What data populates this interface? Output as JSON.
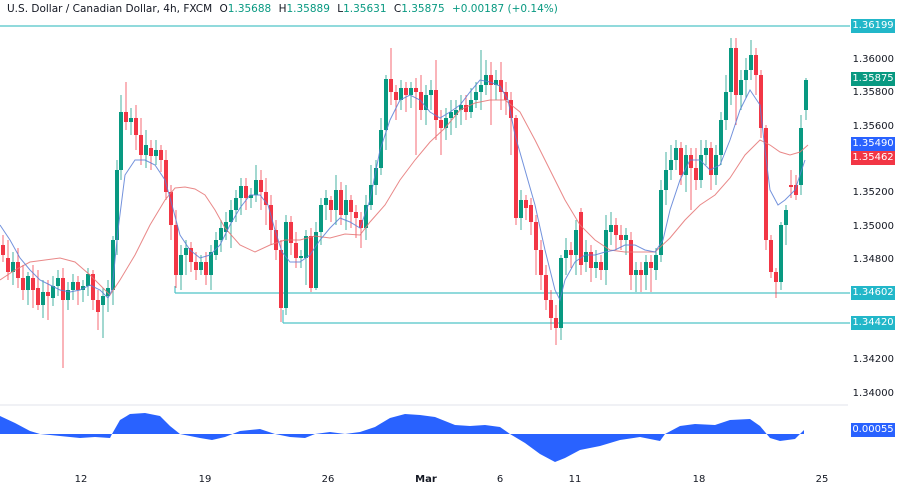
{
  "header": {
    "symbol_name": "U.S. Dollar / Canadian Dollar, 4h, FXCM",
    "open_label": "O",
    "open": "1.35688",
    "high_label": "H",
    "high": "1.35889",
    "low_label": "L",
    "low": "1.35631",
    "close_label": "C",
    "close": "1.35875",
    "change": "+0.00187 (+0.14%)"
  },
  "price_axis": {
    "ticks": [
      "1.36000",
      "1.35800",
      "1.35600",
      "1.35200",
      "1.35000",
      "1.34800",
      "1.34200",
      "1.34000"
    ],
    "tags": {
      "resistance": "1.36199",
      "last_price": "1.35875",
      "ma_fast": "1.35490",
      "ma_slow": "1.35462",
      "support_1": "1.34602",
      "support_2": "1.34420",
      "oscillator": "0.00055"
    }
  },
  "time_axis": {
    "labels": [
      "12",
      "19",
      "26",
      "Mar",
      "6",
      "11",
      "18",
      "25"
    ]
  },
  "colors": {
    "up": "#089981",
    "down": "#f23645",
    "ma_fast": "#5b7fd6",
    "ma_slow": "#e57373",
    "level_line": "#4fc3c8",
    "level_tag": "#22b7c9",
    "oscillator": "#2962ff"
  },
  "chart_data": {
    "type": "candlestick",
    "title": "U.S. Dollar / Canadian Dollar, 4h, FXCM",
    "xlabel": "",
    "ylabel": "Price",
    "ylim": [
      1.3388,
      1.3625
    ],
    "x_ticks": [
      "12",
      "19",
      "26",
      "Mar",
      "6",
      "11",
      "18",
      "25"
    ],
    "horizontal_levels": [
      1.36199,
      1.34602,
      1.3442
    ],
    "last_price": 1.35875,
    "moving_averages": [
      {
        "name": "fast MA",
        "color": "blue",
        "last": 1.3549
      },
      {
        "name": "slow MA",
        "color": "red",
        "last": 1.35462
      }
    ],
    "oscillator": {
      "type": "area",
      "last": 0.00055,
      "zero_line": true
    },
    "candles_ohlc": [
      [
        1.3492,
        1.3498,
        1.3478,
        1.3482
      ],
      [
        1.3482,
        1.3486,
        1.347,
        1.3476
      ],
      [
        1.3476,
        1.3489,
        1.3474,
        1.3486
      ],
      [
        1.3486,
        1.349,
        1.3466,
        1.347
      ],
      [
        1.347,
        1.3478,
        1.346,
        1.3464
      ],
      [
        1.3464,
        1.3476,
        1.346,
        1.3472
      ],
      [
        1.3472,
        1.348,
        1.3462,
        1.3466
      ],
      [
        1.3466,
        1.347,
        1.3446,
        1.345
      ],
      [
        1.345,
        1.3464,
        1.344,
        1.346
      ],
      [
        1.346,
        1.347,
        1.3452,
        1.3456
      ],
      [
        1.3456,
        1.3462,
        1.3446,
        1.3458
      ],
      [
        1.3458,
        1.347,
        1.3454,
        1.3466
      ],
      [
        1.3466,
        1.348,
        1.3462,
        1.3478
      ],
      [
        1.3478,
        1.3486,
        1.3456,
        1.3458
      ],
      [
        1.3458,
        1.3466,
        1.3442,
        1.3444
      ],
      [
        1.3444,
        1.3462,
        1.344,
        1.3458
      ],
      [
        1.3458,
        1.3462,
        1.345,
        1.3455
      ],
      [
        1.3455,
        1.347,
        1.3452,
        1.3468
      ],
      [
        1.3468,
        1.3474,
        1.346,
        1.3464
      ],
      [
        1.3464,
        1.3468,
        1.341,
        1.343
      ],
      [
        1.343,
        1.348,
        1.3428,
        1.3474
      ],
      [
        1.3474,
        1.3478,
        1.345,
        1.3456
      ],
      [
        1.3456,
        1.3462,
        1.3448,
        1.3452
      ],
      [
        1.3452,
        1.3464,
        1.345,
        1.346
      ],
      [
        1.346,
        1.347,
        1.3454,
        1.3466
      ],
      [
        1.3466,
        1.3474,
        1.346,
        1.3462
      ],
      [
        1.3462,
        1.3482,
        1.3458,
        1.3478
      ],
      [
        1.3478,
        1.3482,
        1.3436,
        1.3442
      ],
      [
        1.3442,
        1.347,
        1.3436,
        1.3464
      ],
      [
        1.3464,
        1.3468,
        1.345,
        1.3452
      ],
      [
        1.3452,
        1.3462,
        1.3448,
        1.3458
      ],
      [
        1.3458,
        1.3466,
        1.345,
        1.3464
      ],
      [
        1.3464,
        1.3468,
        1.3452,
        1.3456
      ],
      [
        1.3456,
        1.352,
        1.345,
        1.3516
      ],
      [
        1.3516,
        1.356,
        1.3512,
        1.3558
      ],
      [
        1.3558,
        1.3586,
        1.3552,
        1.3572
      ],
      [
        1.3572,
        1.3578,
        1.356,
        1.3565
      ],
      [
        1.3565,
        1.3572,
        1.3556,
        1.3566
      ],
      [
        1.3566,
        1.357,
        1.355,
        1.3554
      ],
      [
        1.3554,
        1.3564,
        1.354,
        1.3544
      ],
      [
        1.3544,
        1.3554,
        1.3536,
        1.355
      ],
      [
        1.355,
        1.3558,
        1.354,
        1.3546
      ],
      [
        1.3546,
        1.3552,
        1.3538,
        1.354
      ],
      [
        1.354,
        1.3548,
        1.3534,
        1.3544
      ],
      [
        1.3544,
        1.3546,
        1.3528,
        1.3532
      ],
      [
        1.3532,
        1.3536,
        1.3508,
        1.3512
      ],
      [
        1.3512,
        1.352,
        1.3496,
        1.35
      ],
      [
        1.35,
        1.3506,
        1.3484,
        1.3488
      ],
      [
        1.3488,
        1.3496,
        1.3468,
        1.347
      ],
      [
        1.347,
        1.3498,
        1.3466,
        1.3494
      ],
      [
        1.3494,
        1.3498,
        1.348,
        1.3484
      ],
      [
        1.3484,
        1.3494,
        1.348,
        1.3488
      ],
      [
        1.3488,
        1.3496,
        1.3476,
        1.348
      ],
      [
        1.348,
        1.349,
        1.3472,
        1.3486
      ],
      [
        1.3486,
        1.349,
        1.3474,
        1.3476
      ]
    ]
  }
}
